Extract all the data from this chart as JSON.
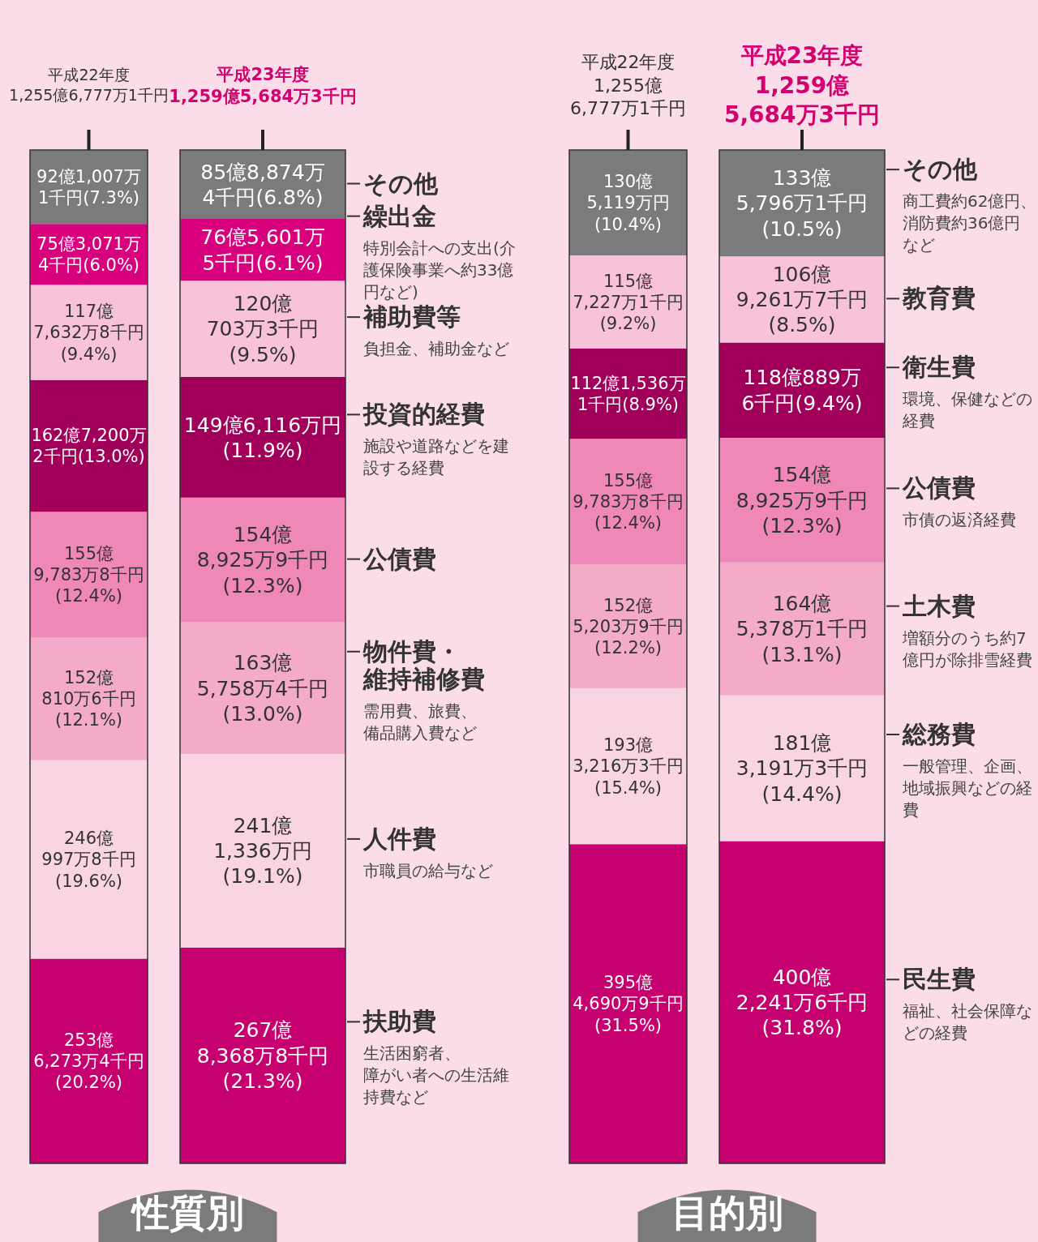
{
  "chart_data": [
    {
      "type": "bar",
      "stacked": true,
      "title": "性質別",
      "categories": [
        "平成22年度\n1,255億6,777万1千円",
        "平成23年度\n1,259億5,684万3千円"
      ],
      "series": [
        {
          "name": "扶助費",
          "color": "#c6006f",
          "values": [
            20.2,
            21.3
          ],
          "value_labels": [
            "253億\n6,273万4千円\n(20.2%)",
            "267億\n8,368万8千円\n(21.3%)"
          ]
        },
        {
          "name": "人件費",
          "color": "#f9d5e4",
          "values": [
            19.6,
            19.1
          ],
          "value_labels": [
            "246億\n997万8千円\n(19.6%)",
            "241億\n1,336万円\n(19.1%)"
          ]
        },
        {
          "name": "物件費・維持補修費",
          "color": "#f4abca",
          "values": [
            12.1,
            13.0
          ],
          "value_labels": [
            "152億\n810万6千円\n(12.1%)",
            "163億\n5,758万4千円\n(13.0%)"
          ]
        },
        {
          "name": "公債費",
          "color": "#ef88b6",
          "values": [
            12.4,
            12.3
          ],
          "value_labels": [
            "155億\n9,783万8千円\n(12.4%)",
            "154億\n8,925万9千円\n(12.3%)"
          ]
        },
        {
          "name": "投資的経費",
          "color": "#a0005a",
          "values": [
            13.0,
            11.9
          ],
          "value_labels": [
            "162億7,200万\n2千円(13.0%)",
            "149億6,116万円\n(11.9%)"
          ]
        },
        {
          "name": "補助費等",
          "color": "#f8c2da",
          "values": [
            9.4,
            9.5
          ],
          "value_labels": [
            "117億\n7,632万8千円\n(9.4%)",
            "120億\n703万3千円\n(9.5%)"
          ]
        },
        {
          "name": "繰出金",
          "color": "#d9007e",
          "values": [
            6.0,
            6.1
          ],
          "value_labels": [
            "75億3,071万\n4千円(6.0%)",
            "76億5,601万\n5千円(6.1%)"
          ]
        },
        {
          "name": "その他",
          "color": "#7b7b7d",
          "values": [
            7.3,
            6.8
          ],
          "value_labels": [
            "92億1,007万\n1千円(7.3%)",
            "85億8,874万\n4千円(6.8%)"
          ]
        }
      ],
      "annotations": [
        "生活困窮者、障がい者への生活維持費など",
        "市職員の給与など",
        "需用費、旅費、備品購入費など",
        null,
        "施設や道路などを建設する経費",
        "負担金、補助金など",
        "特別会計への支出(介護保険事業へ約33億円など)",
        null
      ]
    },
    {
      "type": "bar",
      "stacked": true,
      "title": "目的別",
      "categories": [
        "平成22年度\n1,255億\n6,777万1千円",
        "平成23年度\n1,259億\n5,684万3千円"
      ],
      "series": [
        {
          "name": "民生費",
          "color": "#c6006f",
          "values": [
            31.5,
            31.8
          ],
          "value_labels": [
            "395億\n4,690万9千円\n(31.5%)",
            "400億\n2,241万6千円\n(31.8%)"
          ]
        },
        {
          "name": "総務費",
          "color": "#f9d5e4",
          "values": [
            15.4,
            14.4
          ],
          "value_labels": [
            "193億\n3,216万3千円\n(15.4%)",
            "181億\n3,191万3千円\n(14.4%)"
          ]
        },
        {
          "name": "土木費",
          "color": "#f4abca",
          "values": [
            12.2,
            13.1
          ],
          "value_labels": [
            "152億\n5,203万9千円\n(12.2%)",
            "164億\n5,378万1千円\n(13.1%)"
          ]
        },
        {
          "name": "公債費",
          "color": "#ef88b6",
          "values": [
            12.4,
            12.3
          ],
          "value_labels": [
            "155億\n9,783万8千円\n(12.4%)",
            "154億\n8,925万9千円\n(12.3%)"
          ]
        },
        {
          "name": "衛生費",
          "color": "#a0005a",
          "values": [
            8.9,
            9.4
          ],
          "value_labels": [
            "112億1,536万\n1千円(8.9%)",
            "118億889万\n6千円(9.4%)"
          ]
        },
        {
          "name": "教育費",
          "color": "#f8c2da",
          "values": [
            9.2,
            8.5
          ],
          "value_labels": [
            "115億\n7,227万1千円\n(9.2%)",
            "106億\n9,261万7千円\n(8.5%)"
          ]
        },
        {
          "name": "その他",
          "color": "#7b7b7d",
          "values": [
            10.4,
            10.5
          ],
          "value_labels": [
            "130億\n5,119万円\n(10.4%)",
            "133億\n5,796万1千円\n(10.5%)"
          ]
        }
      ],
      "annotations": [
        "福祉、社会保障などの経費",
        "一般管理、企画、地域振興などの経費",
        "増額分のうち約7億円が除排雪経費",
        "市債の返済経費",
        "環境、保健などの経費",
        null,
        "商工費約62億円、消防費約36億円など"
      ]
    }
  ]
}
